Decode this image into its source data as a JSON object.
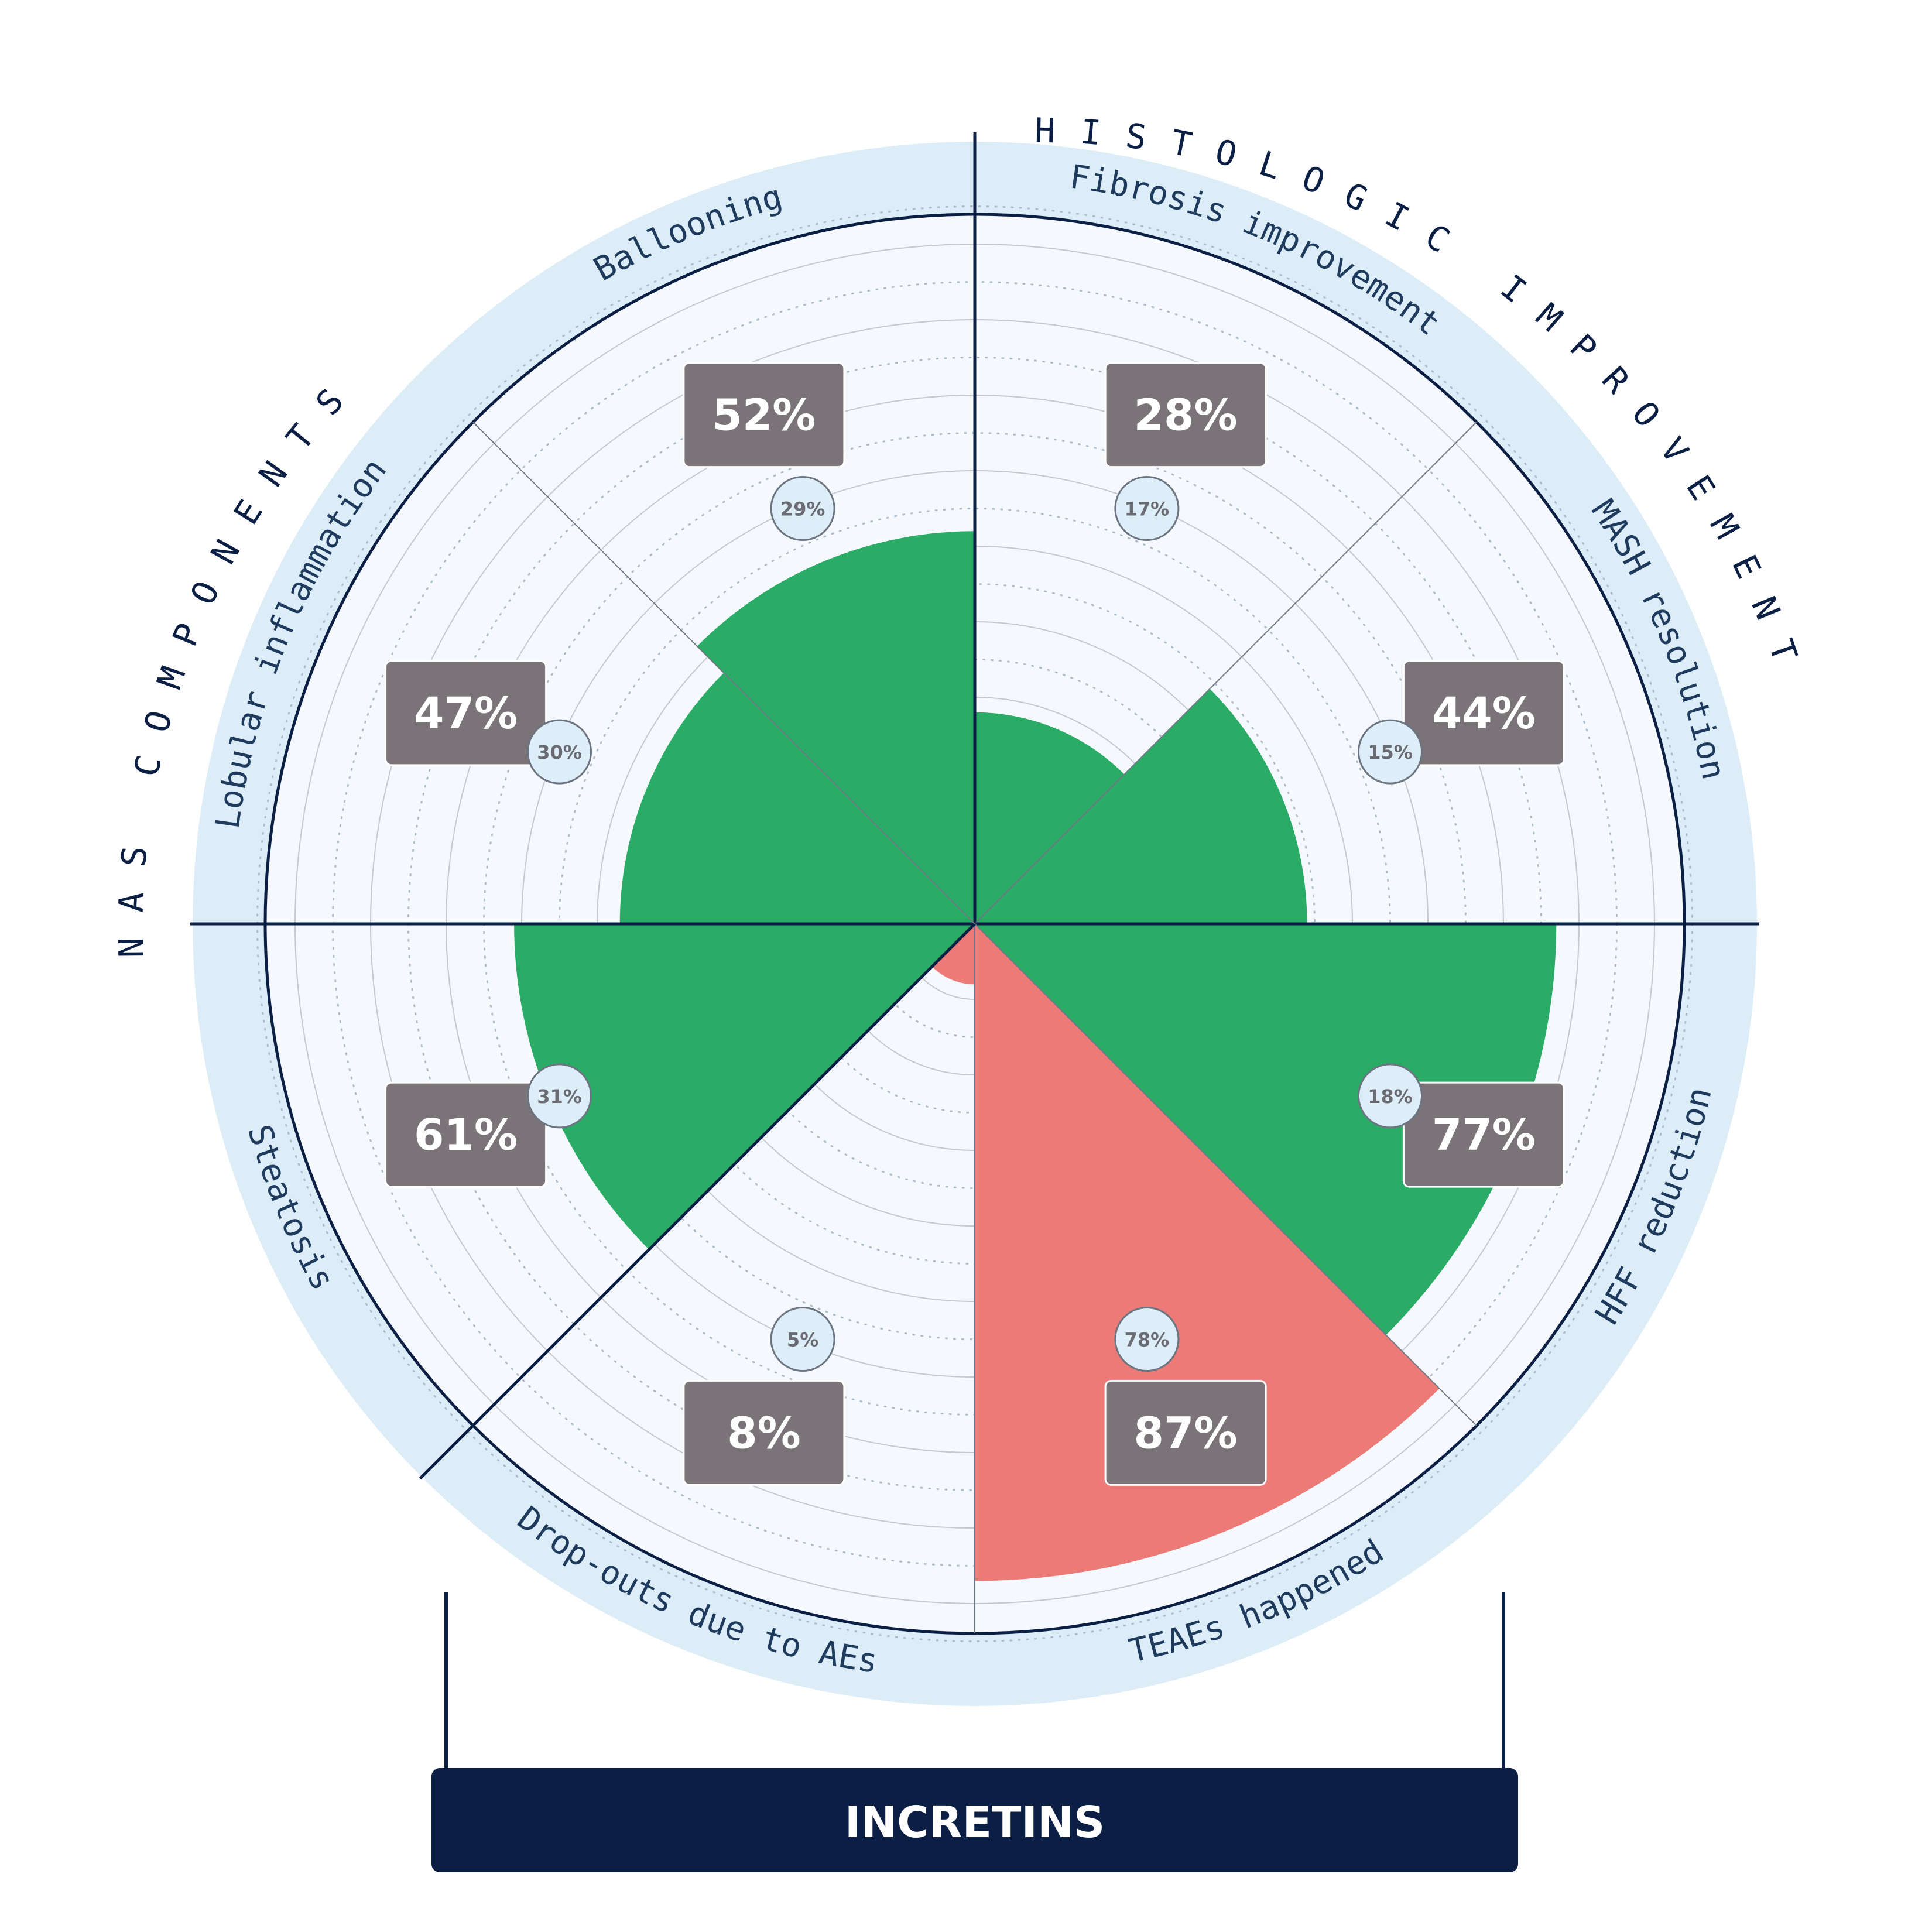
{
  "footer": {
    "label": "INCRETINS"
  },
  "groups": [
    {
      "name": "NAS COMPONENTS"
    },
    {
      "name": "HISTOLOGIC IMPROVEMENT"
    }
  ],
  "colors": {
    "benefit": "#2bac66",
    "adverse": "#ec7b77",
    "adverse_placebo": "#f6b4a8",
    "ring": "#dcedf8",
    "plot_bg": "#f5f9fd",
    "navy": "#0b1f44",
    "value_box": "#7a7377",
    "placebo_badge": "#ddeef8"
  },
  "chart_data": {
    "type": "polar-area",
    "title": "",
    "radial_axis": {
      "range": [
        0,
        100
      ],
      "unit": "%",
      "grid_step": 10
    },
    "series": [
      {
        "name": "",
        "key": "value"
      },
      {
        "name": "",
        "key": "placebo"
      }
    ],
    "categories": [
      {
        "label": "Fibrosis improvement",
        "value": 28,
        "placebo": 17,
        "kind": "benefit"
      },
      {
        "label": "MASH resolution",
        "value": 44,
        "placebo": 15,
        "kind": "benefit"
      },
      {
        "label": "HFF reduction",
        "value": 77,
        "placebo": 18,
        "kind": "benefit"
      },
      {
        "label": "TEAEs happened",
        "value": 87,
        "placebo": 78,
        "kind": "adverse"
      },
      {
        "label": "Drop-outs due to AEs",
        "value": 8,
        "placebo": 5,
        "kind": "adverse"
      },
      {
        "label": "Steatosis",
        "value": 61,
        "placebo": 31,
        "kind": "benefit"
      },
      {
        "label": "Lobular inflammation",
        "value": 47,
        "placebo": 30,
        "kind": "benefit"
      },
      {
        "label": "Ballooning",
        "value": 52,
        "placebo": 29,
        "kind": "benefit"
      }
    ]
  }
}
